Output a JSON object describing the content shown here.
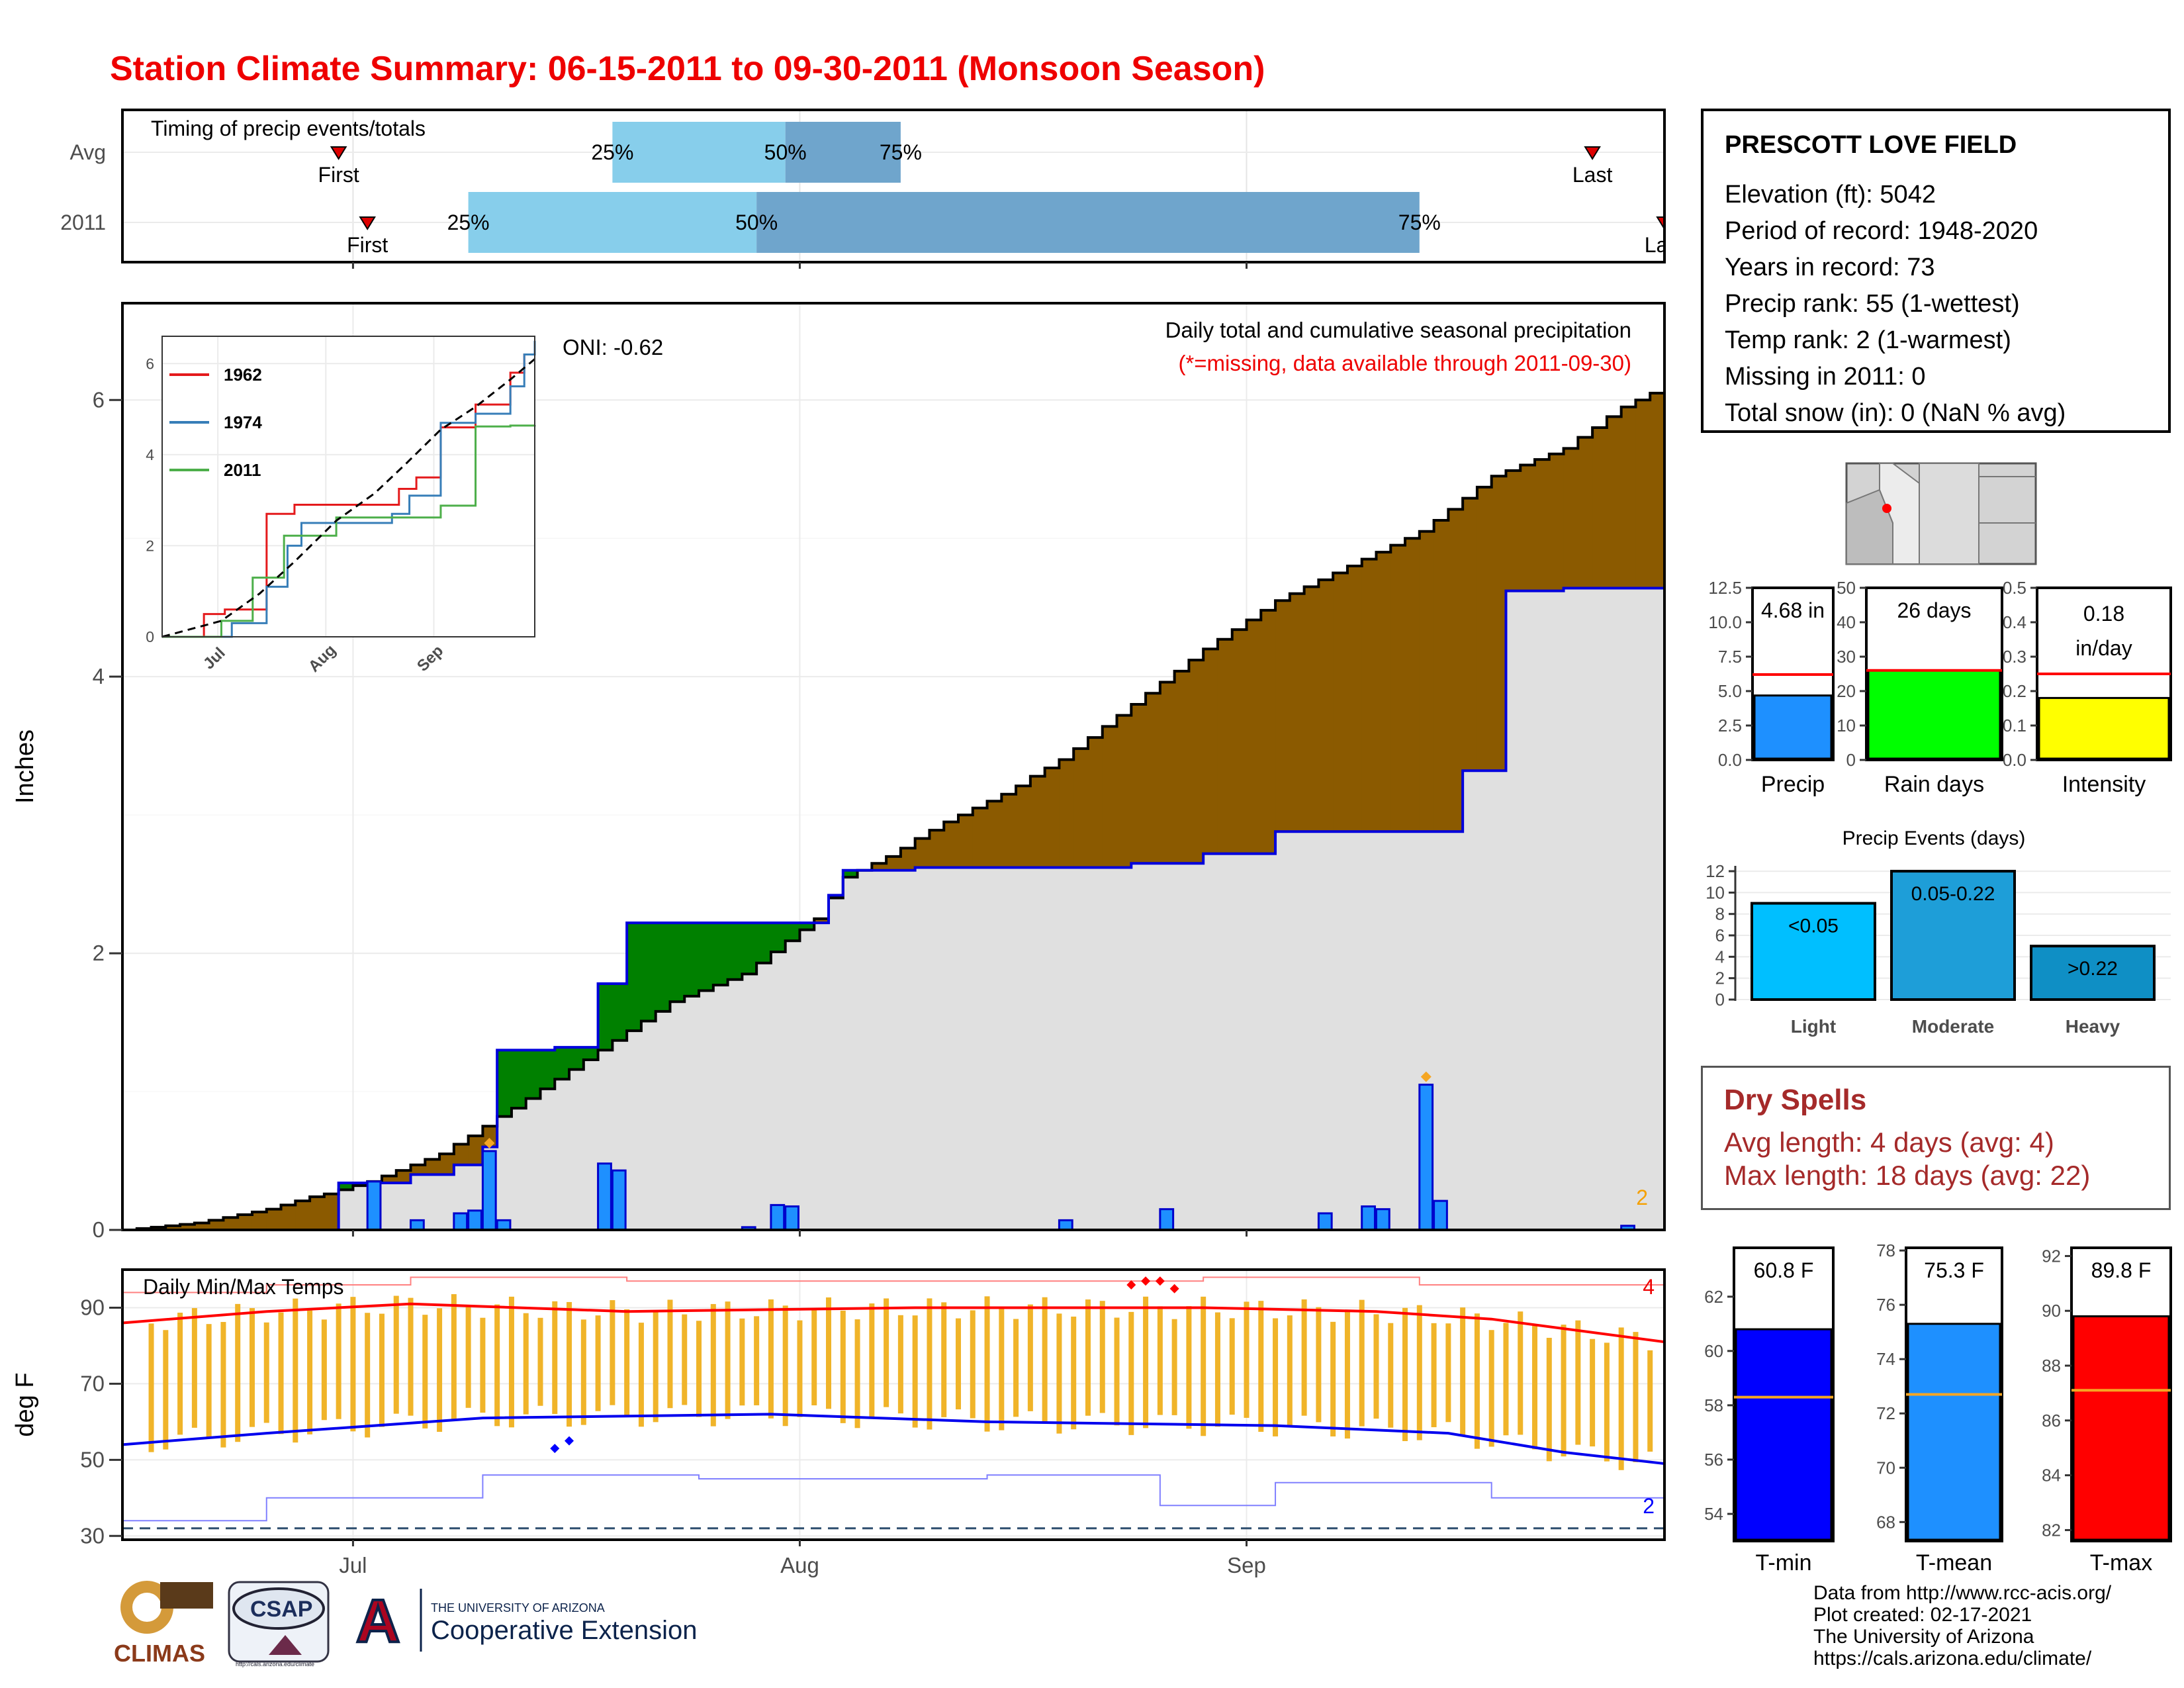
{
  "title": "Station Climate Summary: 06-15-2011 to 09-30-2011 (Monsoon Season)",
  "station": {
    "name": "PRESCOTT LOVE FIELD",
    "lines": [
      "Elevation (ft): 5042",
      "Period of record: 1948-2020",
      "Years in record: 73",
      "Precip rank: 55 (1-wettest)",
      "Temp rank: 2 (1-warmest)",
      "Missing in 2011: 0",
      "Total snow (in): 0 (NaN % avg)"
    ]
  },
  "dry_spells": {
    "title": "Dry Spells",
    "avg_length": "Avg length: 4 days (avg: 4)",
    "max_length": "Max length: 18 days (avg: 22)"
  },
  "credits": [
    "Data from http://www.rcc-acis.org/",
    "Plot created: 02-17-2021",
    "The University of Arizona",
    "https://cals.arizona.edu/climate/"
  ],
  "logos": {
    "climas": "CLIMAS",
    "csap": "CSAP",
    "csap_url": "http://cals.arizona.edu/climate",
    "ua_line1": "THE UNIVERSITY OF ARIZONA",
    "ua_line2": "Cooperative Extension",
    "ua_mark": "A"
  },
  "colors": {
    "title": "#ee0000",
    "above_avg": "#8b5a00",
    "below_avg": "#008000",
    "avg_fill": "#e0e0e0",
    "bars": "#1e90ff",
    "tmax": "#ff0000",
    "tmin": "#0000ee",
    "range_bar": "#f0b429",
    "q_light": "#87ceeb",
    "q_dark": "#6fa5cc"
  },
  "chart_data": [
    {
      "type": "timeline",
      "id": "timing",
      "title": "Timing of precip events/totals",
      "rows": [
        {
          "label": "Avg",
          "first": "06-30",
          "q25": "07-19",
          "q50": "07-31",
          "q75": "08-08",
          "last": "09-25",
          "last_label": "Last",
          "first_label": "First"
        },
        {
          "label": "2011",
          "first": "07-02",
          "q25": "07-09",
          "q50": "07-29",
          "q75": "09-13",
          "last": "09-30",
          "last_label": "Last",
          "first_label": "First"
        }
      ],
      "quartile_labels": [
        "25%",
        "50%",
        "75%"
      ],
      "x_ticks": [
        "Jul",
        "Aug",
        "Sep"
      ]
    },
    {
      "type": "area",
      "id": "cumulative",
      "title": "Daily total and cumulative seasonal precipitation",
      "note": "(*=missing, data available through 2011-09-30)",
      "oni": "ONI: -0.62",
      "ylabel": "Inches",
      "ylim": [
        0,
        6.7
      ],
      "yticks": [
        "0",
        "2",
        "4",
        "6"
      ],
      "x_ticks": [
        "Jul",
        "Aug",
        "Sep"
      ],
      "corner_count": "2",
      "cum_2011": [
        [
          0,
          0
        ],
        [
          15,
          0.34
        ],
        [
          20,
          0.4
        ],
        [
          23,
          0.47
        ],
        [
          25,
          0.6
        ],
        [
          26,
          1.3
        ],
        [
          30,
          1.32
        ],
        [
          33,
          1.78
        ],
        [
          35,
          2.22
        ],
        [
          45,
          2.22
        ],
        [
          47,
          2.22
        ],
        [
          49,
          2.42
        ],
        [
          50,
          2.6
        ],
        [
          55,
          2.62
        ],
        [
          65,
          2.62
        ],
        [
          70,
          2.65
        ],
        [
          75,
          2.72
        ],
        [
          80,
          2.88
        ],
        [
          90,
          2.88
        ],
        [
          93,
          3.32
        ],
        [
          96,
          4.62
        ],
        [
          100,
          4.64
        ],
        [
          107,
          4.65
        ]
      ],
      "cum_avg": [
        [
          0,
          0
        ],
        [
          5,
          0.05
        ],
        [
          10,
          0.15
        ],
        [
          17,
          0.35
        ],
        [
          22,
          0.55
        ],
        [
          28,
          0.95
        ],
        [
          33,
          1.3
        ],
        [
          38,
          1.65
        ],
        [
          43,
          1.85
        ],
        [
          48,
          2.25
        ],
        [
          50,
          2.55
        ],
        [
          53,
          2.7
        ],
        [
          57,
          2.95
        ],
        [
          61,
          3.15
        ],
        [
          65,
          3.4
        ],
        [
          70,
          3.8
        ],
        [
          75,
          4.2
        ],
        [
          80,
          4.55
        ],
        [
          85,
          4.8
        ],
        [
          90,
          5.05
        ],
        [
          95,
          5.45
        ],
        [
          100,
          5.65
        ],
        [
          104,
          5.95
        ],
        [
          107,
          6.1
        ]
      ],
      "daily_2011": [
        [
          17,
          0.35
        ],
        [
          20,
          0.07
        ],
        [
          23,
          0.12
        ],
        [
          24,
          0.14
        ],
        [
          25,
          0.57
        ],
        [
          26,
          0.07
        ],
        [
          33,
          0.48
        ],
        [
          34,
          0.43
        ],
        [
          43,
          0.02
        ],
        [
          45,
          0.18
        ],
        [
          46,
          0.17
        ],
        [
          65,
          0.07
        ],
        [
          72,
          0.15
        ],
        [
          83,
          0.12
        ],
        [
          86,
          0.17
        ],
        [
          87,
          0.15
        ],
        [
          90,
          1.05
        ],
        [
          91,
          0.21
        ],
        [
          104,
          0.03
        ]
      ],
      "missing_markers": [
        [
          25,
          0.57
        ],
        [
          90,
          1.05
        ]
      ]
    },
    {
      "type": "line",
      "id": "inset",
      "series": [
        {
          "name": "1962",
          "color": "#e41a1c",
          "values": [
            [
              0,
              0
            ],
            [
              12,
              0.5
            ],
            [
              18,
              0.6
            ],
            [
              28,
              0.6
            ],
            [
              30,
              2.7
            ],
            [
              38,
              2.9
            ],
            [
              60,
              2.9
            ],
            [
              68,
              3.25
            ],
            [
              73,
              3.5
            ],
            [
              80,
              4.6
            ],
            [
              90,
              5.1
            ],
            [
              100,
              5.8
            ],
            [
              104,
              6.2
            ],
            [
              107,
              6.35
            ]
          ]
        },
        {
          "name": "1974",
          "color": "#377eb8",
          "values": [
            [
              0,
              0
            ],
            [
              18,
              0
            ],
            [
              20,
              0.3
            ],
            [
              30,
              1.1
            ],
            [
              36,
              2.0
            ],
            [
              40,
              2.5
            ],
            [
              58,
              2.5
            ],
            [
              66,
              2.7
            ],
            [
              71,
              3.1
            ],
            [
              80,
              4.7
            ],
            [
              90,
              4.9
            ],
            [
              100,
              5.5
            ],
            [
              104,
              6.2
            ],
            [
              107,
              6.5
            ]
          ]
        },
        {
          "name": "2011",
          "color": "#4daf4a",
          "values": [
            [
              0,
              0
            ],
            [
              15,
              0
            ],
            [
              17,
              0.35
            ],
            [
              26,
              1.3
            ],
            [
              35,
              2.22
            ],
            [
              50,
              2.62
            ],
            [
              65,
              2.62
            ],
            [
              80,
              2.88
            ],
            [
              90,
              4.62
            ],
            [
              100,
              4.64
            ],
            [
              107,
              4.65
            ]
          ]
        },
        {
          "name": "avg",
          "dashed": true,
          "color": "#000000",
          "values": [
            [
              0,
              0
            ],
            [
              17,
              0.35
            ],
            [
              28,
              0.95
            ],
            [
              38,
              1.65
            ],
            [
              50,
              2.55
            ],
            [
              61,
              3.15
            ],
            [
              70,
              3.8
            ],
            [
              80,
              4.55
            ],
            [
              90,
              5.05
            ],
            [
              100,
              5.65
            ],
            [
              107,
              6.1
            ]
          ]
        }
      ],
      "yticks": [
        "0",
        "2",
        "4",
        "6"
      ],
      "x_ticks": [
        "Jul",
        "Aug",
        "Sep"
      ]
    },
    {
      "type": "range",
      "id": "temps",
      "title": "Daily Min/Max Temps",
      "ylabel": "deg F",
      "ylim": [
        29,
        100
      ],
      "yticks": [
        "30",
        "50",
        "70",
        "90"
      ],
      "x_ticks": [
        "Jul",
        "Aug",
        "Sep"
      ],
      "tmax_avg": [
        [
          0,
          86
        ],
        [
          10,
          89
        ],
        [
          20,
          91
        ],
        [
          35,
          89
        ],
        [
          55,
          90
        ],
        [
          75,
          90
        ],
        [
          87,
          89
        ],
        [
          95,
          87
        ],
        [
          107,
          81
        ]
      ],
      "tmin_avg": [
        [
          0,
          54
        ],
        [
          10,
          57
        ],
        [
          25,
          61
        ],
        [
          45,
          62
        ],
        [
          60,
          60
        ],
        [
          80,
          59
        ],
        [
          92,
          57
        ],
        [
          100,
          52
        ],
        [
          107,
          49
        ]
      ],
      "record_max": [
        [
          0,
          94
        ],
        [
          10,
          96
        ],
        [
          20,
          98
        ],
        [
          35,
          97
        ],
        [
          55,
          97
        ],
        [
          75,
          98
        ],
        [
          90,
          96
        ],
        [
          107,
          92
        ]
      ],
      "record_min": [
        [
          0,
          34
        ],
        [
          10,
          40
        ],
        [
          25,
          46
        ],
        [
          40,
          45
        ],
        [
          60,
          46
        ],
        [
          72,
          38
        ],
        [
          80,
          44
        ],
        [
          95,
          40
        ],
        [
          107,
          36
        ]
      ],
      "freeze_line": 32,
      "hi_count": "4",
      "lo_count": "2",
      "record_hi_markers": [
        [
          70,
          96
        ],
        [
          71,
          97
        ],
        [
          72,
          97
        ],
        [
          73,
          95
        ]
      ],
      "record_lo_markers": [
        [
          30,
          53
        ],
        [
          31,
          55
        ]
      ]
    },
    {
      "type": "bar",
      "id": "precip_total",
      "label": "Precip",
      "value": 4.68,
      "value_label": "4.68 in",
      "avg": 6.2,
      "ylim": [
        0,
        12.5
      ],
      "yticks": [
        "0.0",
        "2.5",
        "5.0",
        "7.5",
        "10.0",
        "12.5"
      ],
      "color": "#1e90ff"
    },
    {
      "type": "bar",
      "id": "rain_days",
      "label": "Rain days",
      "value": 26,
      "value_label": "26 days",
      "avg": 26,
      "ylim": [
        0,
        50
      ],
      "yticks": [
        "0",
        "10",
        "20",
        "30",
        "40",
        "50"
      ],
      "color": "#00ff00"
    },
    {
      "type": "bar",
      "id": "intensity",
      "label": "Intensity",
      "value": 0.18,
      "value_label_1": "0.18",
      "value_label_2": "in/day",
      "avg": 0.25,
      "ylim": [
        0,
        0.5
      ],
      "yticks": [
        "0.0",
        "0.1",
        "0.2",
        "0.3",
        "0.4",
        "0.5"
      ],
      "color": "#ffff00"
    },
    {
      "type": "bar",
      "id": "events",
      "title": "Precip Events (days)",
      "categories": [
        "Light",
        "Moderate",
        "Heavy"
      ],
      "bar_labels": [
        "<0.05",
        "0.05-0.22",
        ">0.22"
      ],
      "values": [
        9,
        12,
        5
      ],
      "colors": [
        "#00bfff",
        "#1e9ed8",
        "#0f8fc5"
      ],
      "ylim": [
        0,
        12.5
      ],
      "yticks": [
        "0",
        "2",
        "4",
        "6",
        "8",
        "10",
        "12"
      ]
    },
    {
      "type": "bar",
      "id": "tmin_bar",
      "label": "T-min",
      "value": 60.8,
      "value_label": "60.8 F",
      "avg": 58.3,
      "ylim": [
        53,
        63.8
      ],
      "yticks": [
        "54",
        "56",
        "58",
        "60",
        "62"
      ],
      "color": "#0000ff"
    },
    {
      "type": "bar",
      "id": "tmean_bar",
      "label": "T-mean",
      "value": 75.3,
      "value_label": "75.3 F",
      "avg": 72.7,
      "ylim": [
        67.3,
        78.1
      ],
      "yticks": [
        "68",
        "70",
        "72",
        "74",
        "76",
        "78"
      ],
      "color": "#1e90ff"
    },
    {
      "type": "bar",
      "id": "tmax_bar",
      "label": "T-max",
      "value": 89.8,
      "value_label": "89.8 F",
      "avg": 87.1,
      "ylim": [
        81.6,
        92.3
      ],
      "yticks": [
        "82",
        "84",
        "86",
        "88",
        "90",
        "92"
      ],
      "color": "#ff0000"
    }
  ]
}
